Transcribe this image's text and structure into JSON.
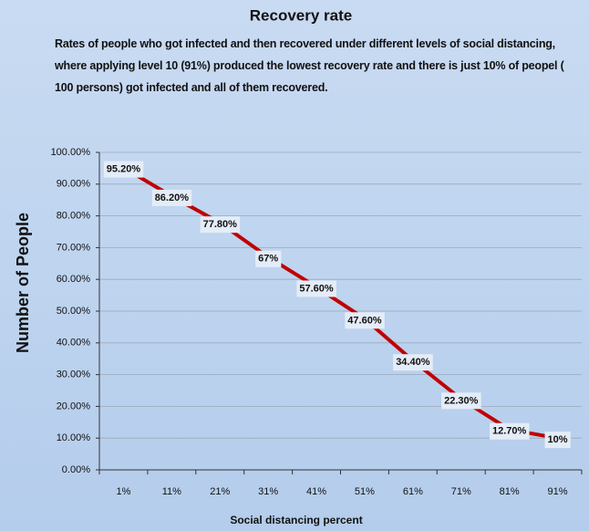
{
  "chart_data": {
    "type": "line",
    "title": "Recovery rate",
    "subtitle": "Rates of people who got infected and then recovered under different levels of social distancing, where applying level 10 (91%) produced the lowest recovery rate and there is just 10% of peopel ( 100 persons) got infected and  all of them recovered.",
    "x_label": "Social distancing percent",
    "y_label": "Number of People",
    "categories": [
      "1%",
      "11%",
      "21%",
      "31%",
      "41%",
      "51%",
      "61%",
      "71%",
      "81%",
      "91%"
    ],
    "values": [
      95.2,
      86.2,
      77.8,
      67,
      57.6,
      47.6,
      34.4,
      22.3,
      12.7,
      10
    ],
    "value_labels": [
      "95.20%",
      "86.20%",
      "77.80%",
      "67%",
      "57.60%",
      "47.60%",
      "34.40%",
      "22.30%",
      "12.70%",
      "10%"
    ],
    "color": "#c00000",
    "ylim": [
      0,
      100
    ],
    "yticks": [
      {
        "value": 0,
        "label": "0.00%"
      },
      {
        "value": 10,
        "label": "10.00%"
      },
      {
        "value": 20,
        "label": "20.00%"
      },
      {
        "value": 30,
        "label": "30.00%"
      },
      {
        "value": 40,
        "label": "40.00%"
      },
      {
        "value": 50,
        "label": "50.00%"
      },
      {
        "value": 60,
        "label": "60.00%"
      },
      {
        "value": 70,
        "label": "70.00%"
      },
      {
        "value": 80,
        "label": "80.00%"
      },
      {
        "value": 90,
        "label": "90.00%"
      },
      {
        "value": 100,
        "label": "100.00%"
      }
    ],
    "grid": true
  }
}
